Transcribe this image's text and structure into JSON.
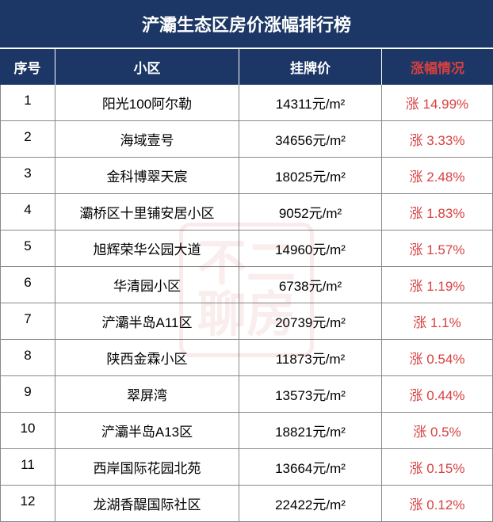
{
  "title": "浐灞生态区房价涨幅排行榜",
  "headers": {
    "index": "序号",
    "name": "小区",
    "price": "挂牌价",
    "change": "涨幅情况"
  },
  "price_unit": "元/m²",
  "change_prefix": "涨 ",
  "rows": [
    {
      "idx": "1",
      "name": "阳光100阿尔勒",
      "price": "14311",
      "change": "14.99%"
    },
    {
      "idx": "2",
      "name": "海域壹号",
      "price": "34656",
      "change": "3.33%"
    },
    {
      "idx": "3",
      "name": "金科博翠天宸",
      "price": "18025",
      "change": "2.48%"
    },
    {
      "idx": "4",
      "name": "灞桥区十里铺安居小区",
      "price": "9052",
      "change": "1.83%"
    },
    {
      "idx": "5",
      "name": "旭辉荣华公园大道",
      "price": "14960",
      "change": "1.57%"
    },
    {
      "idx": "6",
      "name": "华清园小区",
      "price": "6738",
      "change": "1.19%"
    },
    {
      "idx": "7",
      "name": "浐灞半岛A11区",
      "price": "20739",
      "change": "1.1%"
    },
    {
      "idx": "8",
      "name": "陕西金霖小区",
      "price": "11873",
      "change": "0.54%"
    },
    {
      "idx": "9",
      "name": "翠屏湾",
      "price": "13573",
      "change": "0.44%"
    },
    {
      "idx": "10",
      "name": "浐灞半岛A13区",
      "price": "18821",
      "change": "0.5%"
    },
    {
      "idx": "11",
      "name": "西岸国际花园北苑",
      "price": "13664",
      "change": "0.15%"
    },
    {
      "idx": "12",
      "name": "龙湖香醍国际社区",
      "price": "22422",
      "change": "0.12%"
    }
  ],
  "colors": {
    "header_bg": "#1c3765",
    "header_text": "#ffffff",
    "change_text": "#d94040",
    "body_text": "#000000",
    "border": "#888888"
  },
  "watermark_text": "不二\n聊房"
}
